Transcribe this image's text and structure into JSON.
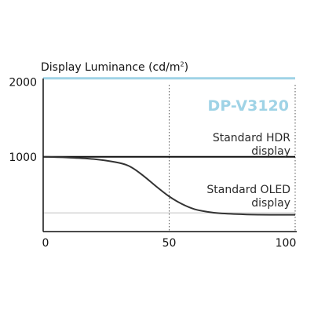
{
  "chart_data": {
    "type": "line",
    "ylabel": {
      "prefix": "Display Luminance (cd/m",
      "superscript": "2",
      "suffix": ")"
    },
    "xlabel": "",
    "xlim": [
      0,
      100
    ],
    "ylim": [
      0,
      2100
    ],
    "x_ticks": [
      "0",
      "50",
      "100"
    ],
    "y_ticks": [
      "1000",
      "2000"
    ],
    "x_tick_values": [
      0,
      50,
      100
    ],
    "y_tick_values": [
      1000,
      2000
    ],
    "grid": "vertical dotted at x=50 and x=100",
    "series": [
      {
        "name": "DP-V3120",
        "color": "#9fd3e6",
        "x": [
          0,
          100
        ],
        "y": [
          2050,
          2050
        ]
      },
      {
        "name": [
          "Standard HDR",
          "display"
        ],
        "color": "#111111",
        "x": [
          0,
          100
        ],
        "y": [
          1000,
          1000
        ]
      },
      {
        "name": [
          "Standard OLED",
          "display"
        ],
        "color": "#333333",
        "x": [
          0,
          10,
          20,
          30,
          35,
          40,
          45,
          50,
          55,
          60,
          65,
          70,
          80,
          90,
          100
        ],
        "y": [
          1000,
          990,
          970,
          920,
          860,
          740,
          600,
          470,
          370,
          300,
          265,
          245,
          230,
          225,
          225
        ]
      }
    ],
    "reference_line": {
      "y": 250,
      "color": "#c8c8c8"
    }
  }
}
